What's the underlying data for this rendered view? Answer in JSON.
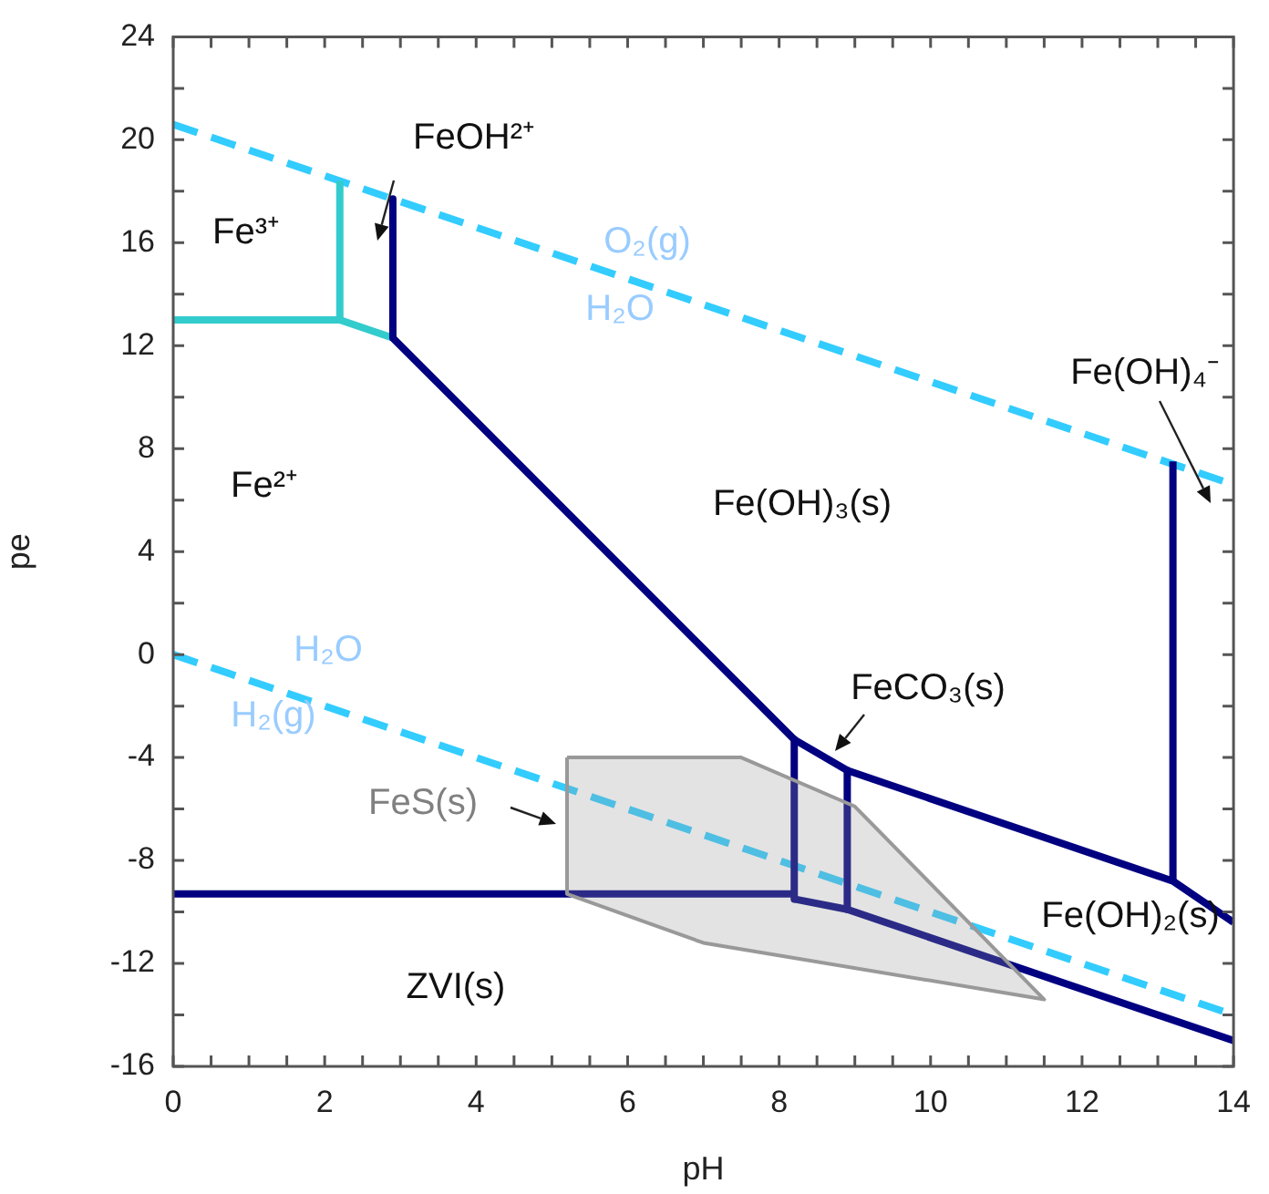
{
  "chart_data": {
    "type": "line",
    "xlabel": "pH",
    "ylabel": "pe",
    "xlim": [
      0,
      14
    ],
    "ylim": [
      -16,
      24
    ],
    "xticks": [
      0,
      {
        "value": 0.5,
        "label": null
      },
      {
        "value": 1,
        "label": null
      },
      {
        "value": 1.5,
        "label": null
      },
      2,
      {
        "value": 2.5,
        "label": null
      },
      {
        "value": 3,
        "label": null
      },
      {
        "value": 3.5,
        "label": null
      },
      4,
      {
        "value": 4.5,
        "label": null
      },
      {
        "value": 5,
        "label": null
      },
      {
        "value": 5.5,
        "label": null
      },
      6,
      {
        "value": 6.5,
        "label": null
      },
      {
        "value": 7,
        "label": null
      },
      {
        "value": 7.5,
        "label": null
      },
      8,
      {
        "value": 8.5,
        "label": null
      },
      {
        "value": 9,
        "label": null
      },
      {
        "value": 9.5,
        "label": null
      },
      10,
      {
        "value": 10.5,
        "label": null
      },
      {
        "value": 11,
        "label": null
      },
      {
        "value": 11.5,
        "label": null
      },
      12,
      {
        "value": 12.5,
        "label": null
      },
      {
        "value": 13,
        "label": null
      },
      {
        "value": 13.5,
        "label": null
      },
      14
    ],
    "yticks": [
      -16,
      {
        "value": -14,
        "label": null
      },
      -12,
      {
        "value": -10,
        "label": null
      },
      -8,
      {
        "value": -6,
        "label": null
      },
      -4,
      {
        "value": -2,
        "label": null
      },
      0,
      {
        "value": 2,
        "label": null
      },
      4,
      {
        "value": 6,
        "label": null
      },
      8,
      {
        "value": 10,
        "label": null
      },
      12,
      {
        "value": 14,
        "label": null
      },
      16,
      {
        "value": 18,
        "label": null
      },
      20,
      {
        "value": 22,
        "label": null
      },
      24
    ],
    "legend": false,
    "marker": "none",
    "series": [
      {
        "line_style": "dashed",
        "color": "#33ccff",
        "x": [
          0,
          14
        ],
        "values": [
          20.6,
          6.6
        ]
      },
      {
        "line_style": "dashed",
        "color": "#33ccff",
        "x": [
          0,
          14
        ],
        "values": [
          0,
          -14
        ]
      },
      {
        "line_style": "solid",
        "color": "#33cccc",
        "x": [
          0,
          2.2,
          2.2
        ],
        "values": [
          13,
          13,
          18.4
        ]
      },
      {
        "line_style": "solid",
        "color": "#33cccc",
        "x": [
          2.2,
          2.9
        ],
        "values": [
          13,
          12.3
        ]
      },
      {
        "line_style": "solid",
        "color": "#000080",
        "x": [
          2.9,
          2.9,
          8.2,
          8.9,
          13.2,
          14
        ],
        "values": [
          17.7,
          12.3,
          -3.3,
          -4.5,
          -8.8,
          -10.4
        ]
      },
      {
        "line_style": "solid",
        "color": "#000080",
        "x": [
          13.2,
          13.2
        ],
        "values": [
          -8.8,
          7.5
        ]
      },
      {
        "line_style": "solid",
        "color": "#000080",
        "x": [
          8.2,
          8.2
        ],
        "values": [
          -3.3,
          -9.5
        ]
      },
      {
        "line_style": "solid",
        "color": "#000080",
        "x": [
          8.9,
          8.9
        ],
        "values": [
          -4.5,
          -9.9
        ]
      },
      {
        "line_style": "solid",
        "color": "#000080",
        "x": [
          0,
          8.2
        ],
        "values": [
          -9.3,
          -9.3
        ]
      },
      {
        "line_style": "solid",
        "color": "#000080",
        "x": [
          8.2,
          8.9,
          14
        ],
        "values": [
          -9.5,
          -9.9,
          -15
        ]
      },
      {
        "type": "area",
        "color": "#999999",
        "x": [
          5.2,
          7.5,
          9,
          11.5,
          7,
          5.2,
          5.2
        ],
        "values": [
          -4,
          -4,
          -5.9,
          -13.4,
          -11.2,
          -9.3,
          -4
        ]
      }
    ],
    "annotations": [
      "FeOH²⁺",
      "Fe³⁺",
      "O₂(g)",
      "H₂O",
      "Fe²⁺",
      "Fe(OH)₃(s)",
      "Fe(OH)₄⁻",
      "H₂O",
      "H₂(g)",
      "FeCO₃(s)",
      "FeS(s)",
      "Fe(OH)₂(s)",
      "ZVI(s)"
    ]
  }
}
